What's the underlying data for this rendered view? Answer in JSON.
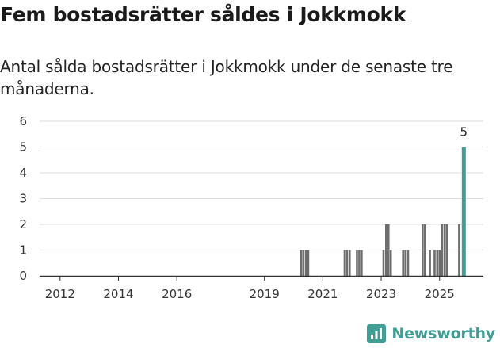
{
  "header": {
    "title": "Fem bostadsrätter såldes i Jokkmokk",
    "subtitle": "Antal sålda bostadsrätter i Jokkmokk under de senaste tre månaderna."
  },
  "brand": {
    "name": "Newsworthy",
    "icon": "newsworthy-logo-icon",
    "color": "#3f9e96"
  },
  "chart_data": {
    "type": "bar",
    "title": "Fem bostadsrätter såldes i Jokkmokk",
    "subtitle": "Antal sålda bostadsrätter i Jokkmokk under de senaste tre månaderna.",
    "xlabel": "",
    "ylabel": "",
    "ylim": [
      0,
      6
    ],
    "yticks": [
      0,
      1,
      2,
      3,
      4,
      5,
      6
    ],
    "xlim": [
      2011.3,
      2026.5
    ],
    "xticks": [
      "2012",
      "2014",
      "2016",
      "2019",
      "2021",
      "2023",
      "2025"
    ],
    "grid": true,
    "colors": {
      "default": "#6d6d6d",
      "highlight": "#3f9e96"
    },
    "series": [
      {
        "name": "Antal sålda bostadsrätter",
        "points": [
          {
            "x": 2020.25,
            "value": 1
          },
          {
            "x": 2020.33,
            "value": 1
          },
          {
            "x": 2020.42,
            "value": 1
          },
          {
            "x": 2020.5,
            "value": 1
          },
          {
            "x": 2021.75,
            "value": 1
          },
          {
            "x": 2021.83,
            "value": 1
          },
          {
            "x": 2021.92,
            "value": 1
          },
          {
            "x": 2022.17,
            "value": 1
          },
          {
            "x": 2022.25,
            "value": 1
          },
          {
            "x": 2022.33,
            "value": 1
          },
          {
            "x": 2023.08,
            "value": 1
          },
          {
            "x": 2023.17,
            "value": 2
          },
          {
            "x": 2023.25,
            "value": 2
          },
          {
            "x": 2023.33,
            "value": 1
          },
          {
            "x": 2023.75,
            "value": 1
          },
          {
            "x": 2023.83,
            "value": 1
          },
          {
            "x": 2023.92,
            "value": 1
          },
          {
            "x": 2024.42,
            "value": 2
          },
          {
            "x": 2024.5,
            "value": 2
          },
          {
            "x": 2024.67,
            "value": 1
          },
          {
            "x": 2024.83,
            "value": 1
          },
          {
            "x": 2024.92,
            "value": 1
          },
          {
            "x": 2025.0,
            "value": 1
          },
          {
            "x": 2025.08,
            "value": 2
          },
          {
            "x": 2025.17,
            "value": 2
          },
          {
            "x": 2025.25,
            "value": 2
          },
          {
            "x": 2025.67,
            "value": 2
          },
          {
            "x": 2025.83,
            "value": 5,
            "highlight": true,
            "label": "5"
          }
        ]
      }
    ]
  }
}
